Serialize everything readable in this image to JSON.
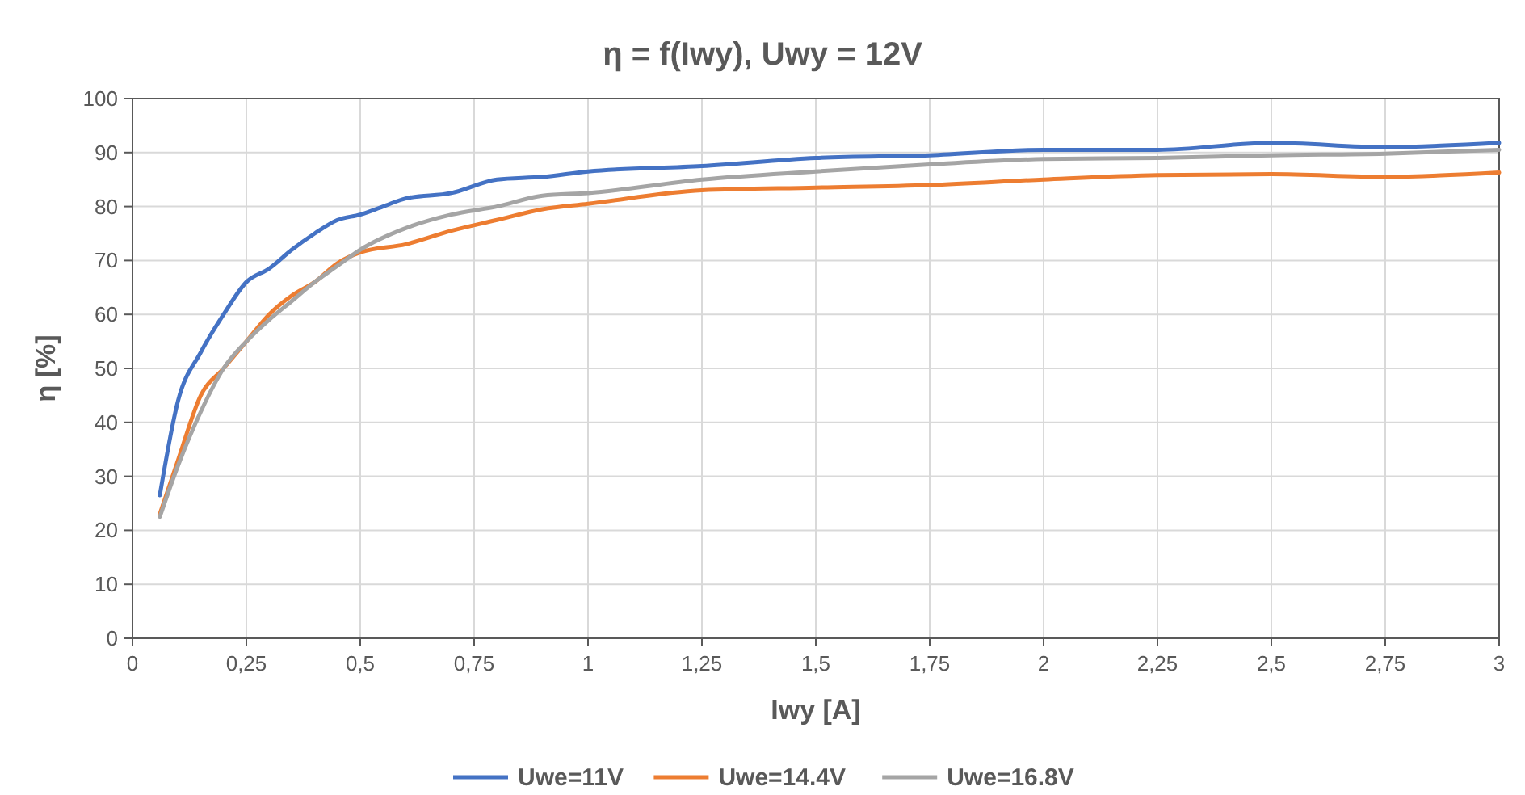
{
  "chart_data": {
    "type": "line",
    "title": "η = f(Iwy), Uwy = 12V",
    "xlabel": "Iwy [A]",
    "ylabel": "η [%]",
    "xlim": [
      0,
      3
    ],
    "ylim": [
      0,
      100
    ],
    "xticks": [
      0,
      {
        "value": 0.25,
        "label": "0,25"
      },
      {
        "value": 0.5,
        "label": "0,5"
      },
      {
        "value": 0.75,
        "label": "0,75"
      },
      1,
      {
        "value": 1.25,
        "label": "1,25"
      },
      {
        "value": 1.5,
        "label": "1,5"
      },
      {
        "value": 1.75,
        "label": "1,75"
      },
      2,
      {
        "value": 2.25,
        "label": "2,25"
      },
      {
        "value": 2.5,
        "label": "2,5"
      },
      {
        "value": 2.75,
        "label": "2,75"
      },
      3
    ],
    "yticks": [
      0,
      10,
      20,
      30,
      40,
      50,
      60,
      70,
      80,
      90,
      100
    ],
    "grid": true,
    "legend": "bottom",
    "marker": "none",
    "line_style": "solid",
    "series": [
      {
        "name": "Uwe=11V",
        "color": "#4472c4",
        "x": [
          0.06,
          0.1,
          0.15,
          0.2,
          0.25,
          0.3,
          0.35,
          0.4,
          0.45,
          0.5,
          0.55,
          0.6,
          0.7,
          0.8,
          0.9,
          1,
          1.25,
          1.5,
          1.75,
          2,
          2.25,
          2.5,
          2.75,
          3
        ],
        "values": [
          26.5,
          44,
          53,
          60,
          66,
          68.5,
          72,
          75,
          77.5,
          78.5,
          80,
          81.5,
          82.5,
          85,
          85.5,
          86.5,
          87.5,
          89,
          89.5,
          90.5,
          90.5,
          91.8,
          91,
          91.8
        ]
      },
      {
        "name": "Uwe=14.4V",
        "color": "#ed7d31",
        "x": [
          0.06,
          0.1,
          0.15,
          0.2,
          0.25,
          0.3,
          0.35,
          0.4,
          0.45,
          0.5,
          0.6,
          0.7,
          0.8,
          0.9,
          1,
          1.25,
          1.5,
          1.75,
          2,
          2.25,
          2.5,
          2.75,
          3
        ],
        "values": [
          23,
          33,
          45,
          50,
          55,
          60,
          63.5,
          66,
          69.5,
          71.5,
          73,
          75.5,
          77.5,
          79.5,
          80.5,
          83,
          83.5,
          84,
          85,
          85.8,
          86,
          85.5,
          86.3
        ]
      },
      {
        "name": "Uwe=16.8V",
        "color": "#a5a5a5",
        "x": [
          0.06,
          0.1,
          0.15,
          0.2,
          0.25,
          0.3,
          0.35,
          0.4,
          0.45,
          0.5,
          0.6,
          0.7,
          0.8,
          0.9,
          1,
          1.25,
          1.5,
          1.75,
          2,
          2.25,
          2.5,
          2.75,
          3
        ],
        "values": [
          22.5,
          32,
          42,
          50,
          55,
          59,
          62.5,
          66,
          69,
          72,
          76,
          78.5,
          80,
          82,
          82.5,
          85,
          86.5,
          87.8,
          88.8,
          89,
          89.5,
          89.8,
          90.5
        ]
      }
    ]
  }
}
